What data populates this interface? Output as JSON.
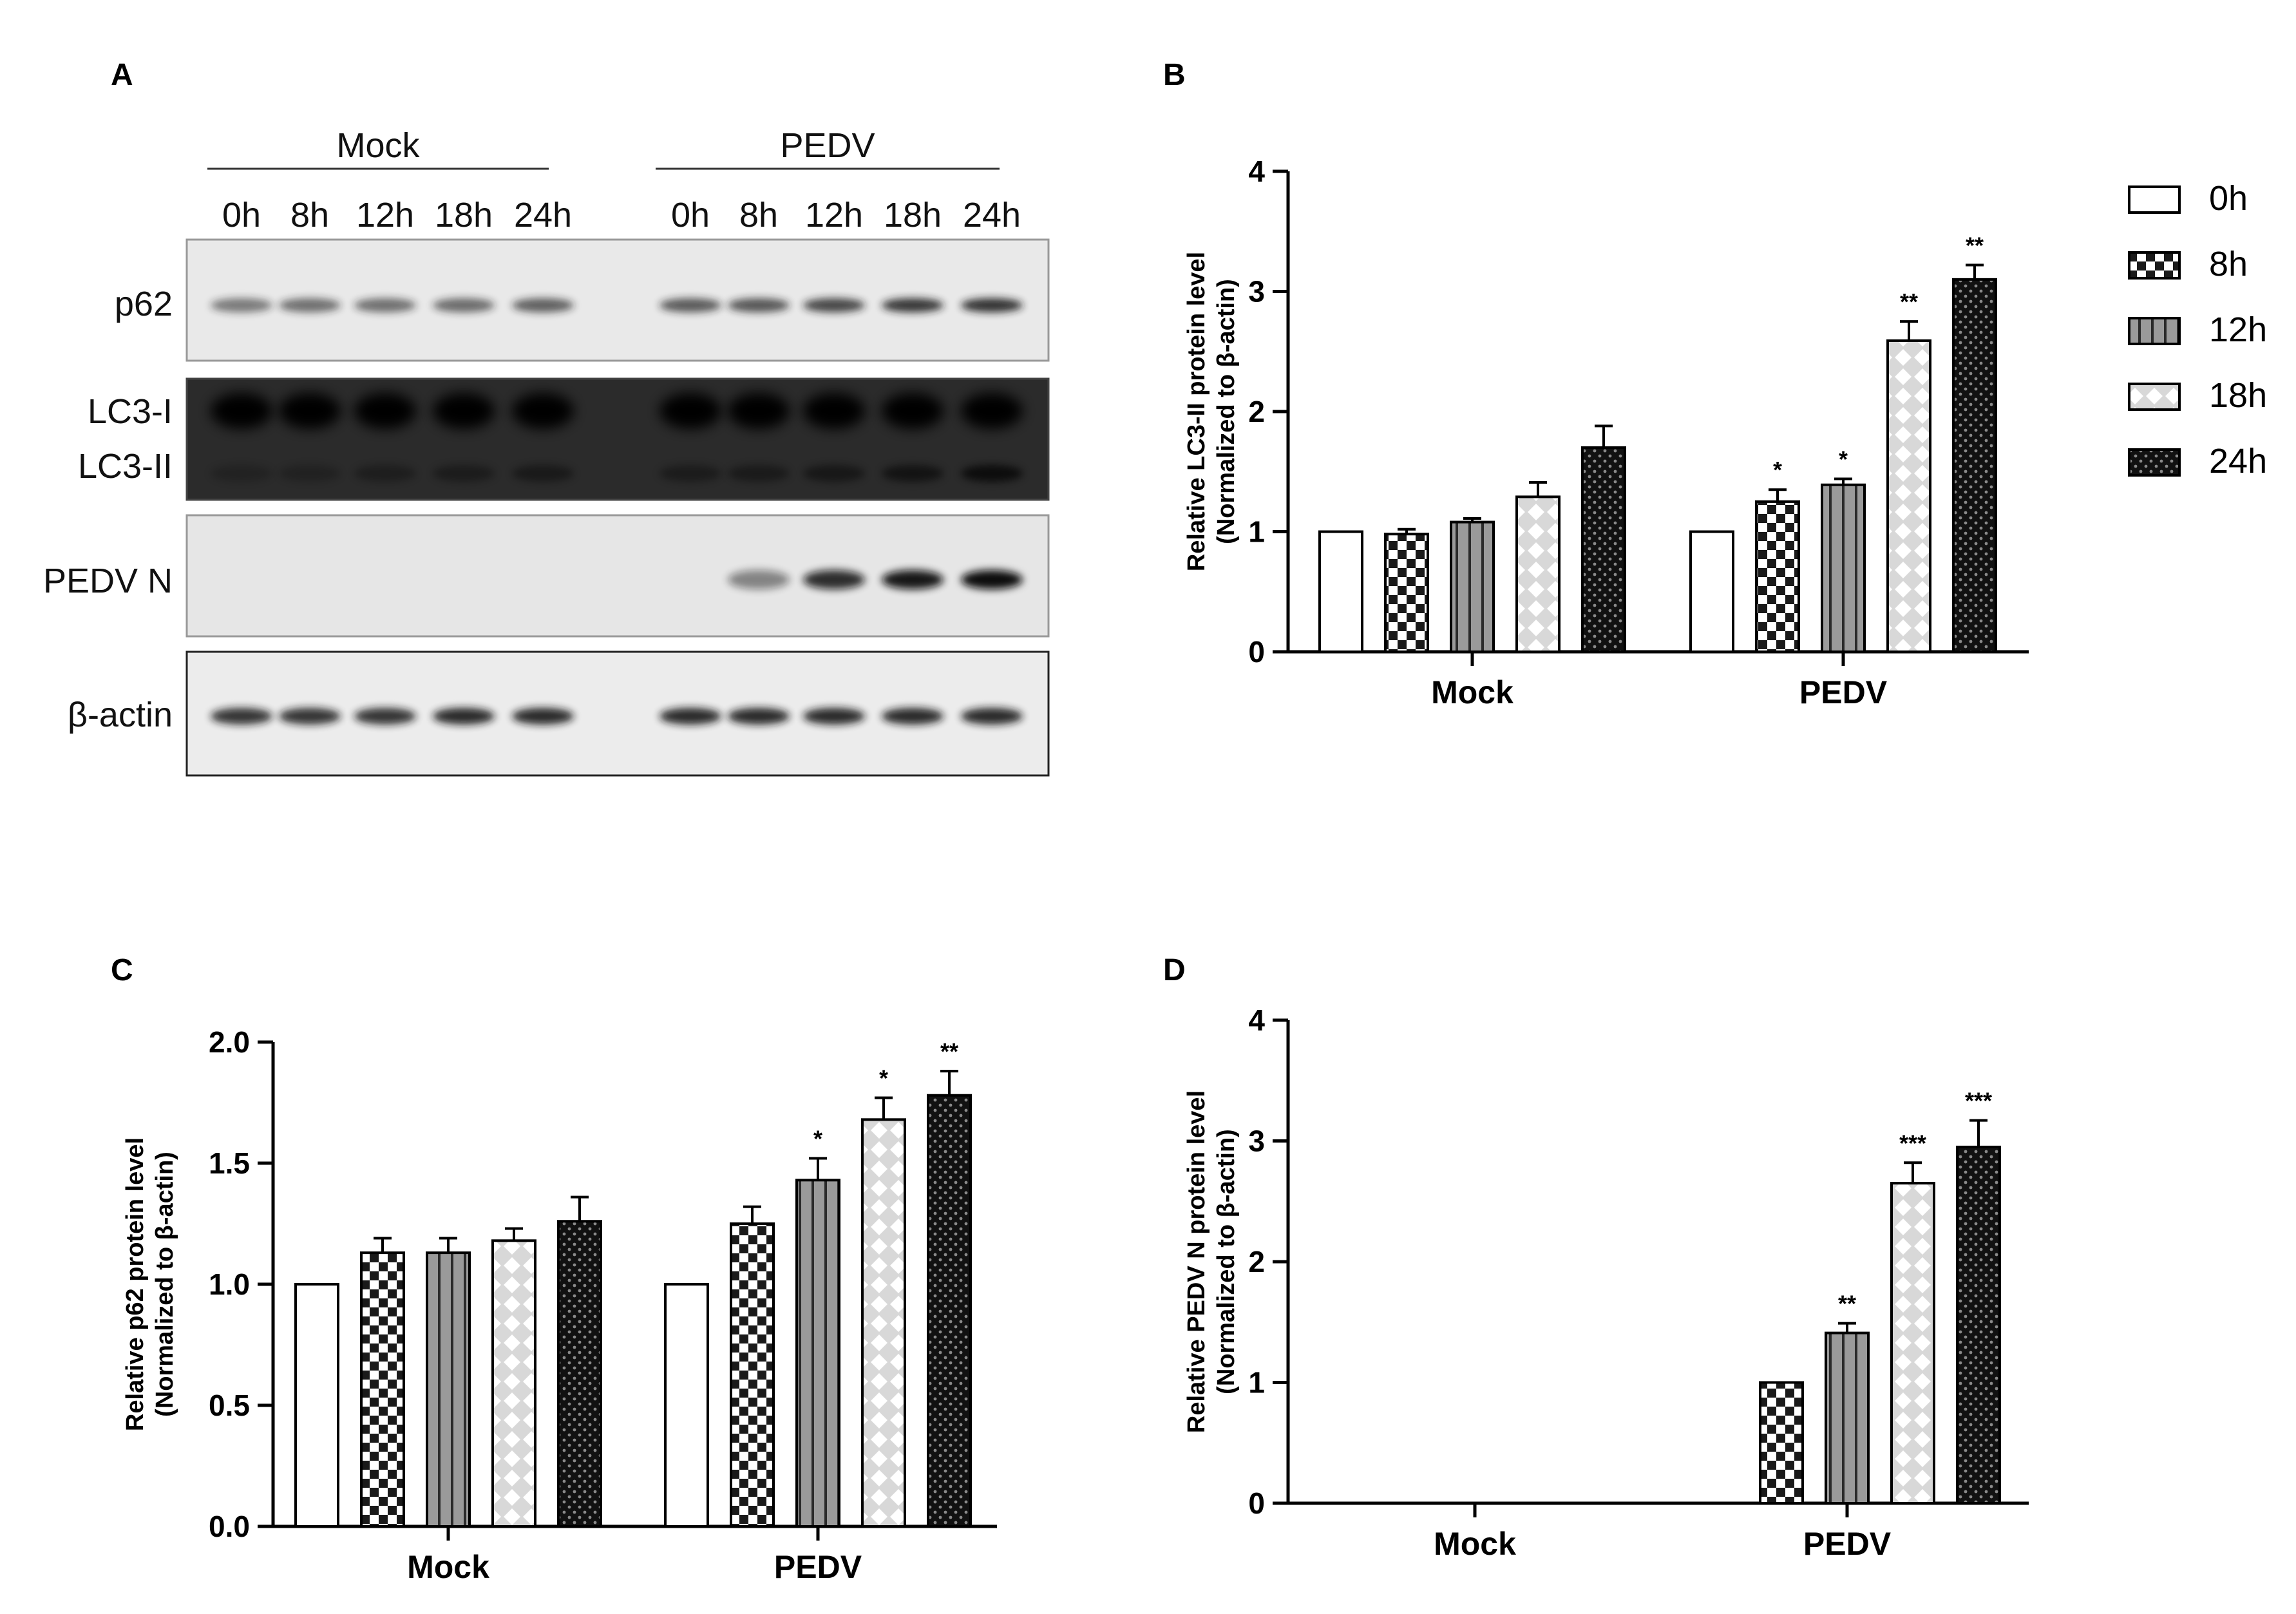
{
  "panel_labels": [
    "A",
    "B",
    "C",
    "D"
  ],
  "blot": {
    "groups": [
      "Mock",
      "PEDV"
    ],
    "lanes": [
      "0h",
      "8h",
      "12h",
      "18h",
      "24h"
    ],
    "rows": [
      "p62",
      "LC3-I",
      "LC3-II",
      "PEDV N",
      "β-actin"
    ]
  },
  "legend": {
    "entries": [
      {
        "label": "0h",
        "pattern": "white"
      },
      {
        "label": "8h",
        "pattern": "checker"
      },
      {
        "label": "12h",
        "pattern": "vstripes"
      },
      {
        "label": "18h",
        "pattern": "lightdiamond"
      },
      {
        "label": "24h",
        "pattern": "darkdots"
      }
    ]
  },
  "chart_data": [
    {
      "panel": "B",
      "type": "bar",
      "categories": [
        "Mock",
        "PEDV"
      ],
      "ylabel": "Relative LC3-II  protein level",
      "ylabel2": "(Normalized to β-actin)",
      "ylim": [
        0,
        4
      ],
      "yticks": [
        "0",
        "1",
        "2",
        "3",
        "4"
      ],
      "legend_position": "right",
      "series": [
        {
          "name": "0h",
          "values": [
            1.0,
            1.0
          ],
          "errors": [
            0,
            0
          ],
          "sig": [
            "",
            ""
          ]
        },
        {
          "name": "8h",
          "values": [
            0.98,
            1.25
          ],
          "errors": [
            0.04,
            0.1
          ],
          "sig": [
            "",
            "*"
          ]
        },
        {
          "name": "12h",
          "values": [
            1.08,
            1.39
          ],
          "errors": [
            0.03,
            0.05
          ],
          "sig": [
            "",
            "*"
          ]
        },
        {
          "name": "18h",
          "values": [
            1.29,
            2.59
          ],
          "errors": [
            0.12,
            0.16
          ],
          "sig": [
            "",
            "**"
          ]
        },
        {
          "name": "24h",
          "values": [
            1.7,
            3.1
          ],
          "errors": [
            0.18,
            0.12
          ],
          "sig": [
            "",
            "**"
          ]
        }
      ]
    },
    {
      "panel": "C",
      "type": "bar",
      "categories": [
        "Mock",
        "PEDV"
      ],
      "ylabel": "Relative p62  protein level",
      "ylabel2": "(Normalized to β-actin)",
      "ylim": [
        0,
        2.0
      ],
      "yticks": [
        "0.0",
        "0.5",
        "1.0",
        "1.5",
        "2.0"
      ],
      "series": [
        {
          "name": "0h",
          "values": [
            1.0,
            1.0
          ],
          "errors": [
            0,
            0
          ],
          "sig": [
            "",
            ""
          ]
        },
        {
          "name": "8h",
          "values": [
            1.13,
            1.25
          ],
          "errors": [
            0.06,
            0.07
          ],
          "sig": [
            "",
            ""
          ]
        },
        {
          "name": "12h",
          "values": [
            1.13,
            1.43
          ],
          "errors": [
            0.06,
            0.09
          ],
          "sig": [
            "",
            "*"
          ]
        },
        {
          "name": "18h",
          "values": [
            1.18,
            1.68
          ],
          "errors": [
            0.05,
            0.09
          ],
          "sig": [
            "",
            "*"
          ]
        },
        {
          "name": "24h",
          "values": [
            1.26,
            1.78
          ],
          "errors": [
            0.1,
            0.1
          ],
          "sig": [
            "",
            "**"
          ]
        }
      ]
    },
    {
      "panel": "D",
      "type": "bar",
      "categories": [
        "Mock",
        "PEDV"
      ],
      "ylabel": "Relative PEDV N  protein level",
      "ylabel2": "(Normalized to β-actin)",
      "ylim": [
        0,
        4
      ],
      "yticks": [
        "0",
        "1",
        "2",
        "3",
        "4"
      ],
      "series": [
        {
          "name": "0h",
          "values": [
            0,
            0
          ],
          "errors": [
            0,
            0
          ],
          "sig": [
            "",
            ""
          ]
        },
        {
          "name": "8h",
          "values": [
            0,
            1.0
          ],
          "errors": [
            0,
            0
          ],
          "sig": [
            "",
            ""
          ]
        },
        {
          "name": "12h",
          "values": [
            0,
            1.41
          ],
          "errors": [
            0,
            0.08
          ],
          "sig": [
            "",
            "**"
          ]
        },
        {
          "name": "18h",
          "values": [
            0,
            2.65
          ],
          "errors": [
            0,
            0.17
          ],
          "sig": [
            "",
            "***"
          ]
        },
        {
          "name": "24h",
          "values": [
            0,
            2.95
          ],
          "errors": [
            0,
            0.22
          ],
          "sig": [
            "",
            "***"
          ]
        }
      ]
    }
  ]
}
